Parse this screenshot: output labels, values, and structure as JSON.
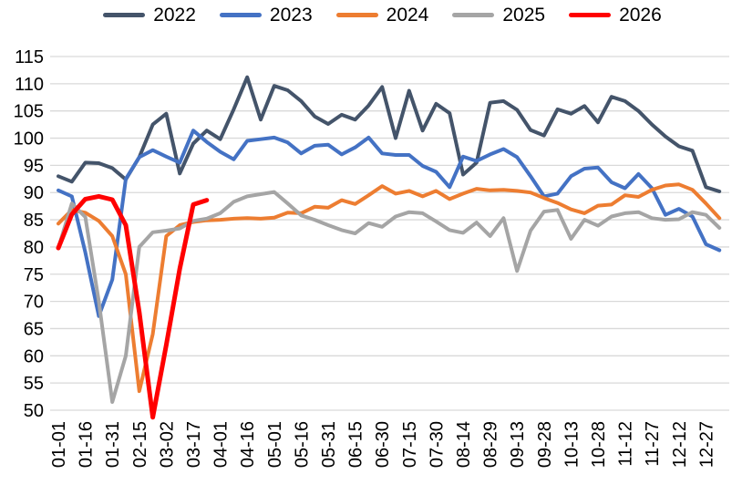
{
  "chart_data": {
    "type": "line",
    "title": "",
    "xlabel": "",
    "ylabel": "",
    "grid": true,
    "legend_position": "top",
    "gridline_color": "#d9d9d9",
    "text_color": "#000000",
    "y_axis": {
      "min": 50,
      "max": 115,
      "step": 5,
      "ticks": [
        115,
        110,
        105,
        100,
        95,
        90,
        85,
        80,
        75,
        70,
        65,
        60,
        55,
        50
      ]
    },
    "x_axis": {
      "tick_labels": [
        "01-01",
        "01-16",
        "01-31",
        "02-15",
        "03-02",
        "03-17",
        "04-01",
        "04-16",
        "05-01",
        "05-16",
        "05-31",
        "06-15",
        "06-30",
        "07-15",
        "07-30",
        "08-14",
        "08-29",
        "09-13",
        "09-28",
        "10-13",
        "10-28",
        "11-12",
        "11-27",
        "12-12",
        "12-27"
      ],
      "points_per_tick_interval": 2
    },
    "series": [
      {
        "name": "2022",
        "color": "#44546A",
        "line_width": 4,
        "values": [
          93,
          92,
          95.5,
          95.4,
          94.5,
          92.4,
          96.5,
          102.5,
          104.5,
          93.5,
          99,
          101.4,
          99.8,
          105.3,
          111.2,
          103.4,
          109.6,
          108.8,
          106.8,
          104,
          102.6,
          104.3,
          103.4,
          106,
          109.4,
          100,
          108.7,
          101.4,
          106.3,
          104.6,
          93.3,
          95.5,
          106.5,
          106.8,
          105.2,
          101.5,
          100.5,
          105.3,
          104.5,
          105.9,
          102.9,
          107.6,
          106.8,
          105,
          102.5,
          100.3,
          98.5,
          97.7,
          91,
          90.2
        ]
      },
      {
        "name": "2023",
        "color": "#4472C4",
        "line_width": 4,
        "values": [
          90.4,
          89.3,
          79,
          67.3,
          74,
          92.5,
          96.5,
          97.8,
          96.6,
          95.5,
          101.4,
          99.3,
          97.5,
          96.1,
          99.5,
          99.8,
          100.1,
          99.2,
          97.2,
          98.6,
          98.8,
          97,
          98.3,
          100.1,
          97.2,
          96.9,
          96.9,
          94.9,
          93.8,
          91,
          96.6,
          95.8,
          97,
          98,
          96.5,
          93,
          89.3,
          89.8,
          93,
          94.4,
          94.6,
          91.9,
          90.8,
          93.4,
          90.8,
          85.9,
          87,
          85.6,
          80.5,
          79.4
        ]
      },
      {
        "name": "2024",
        "color": "#ED7D31",
        "line_width": 4,
        "values": [
          84.3,
          86.8,
          86.3,
          84.8,
          82,
          75,
          53.5,
          64,
          82,
          84,
          84.6,
          84.9,
          85,
          85.2,
          85.3,
          85.2,
          85.4,
          86.3,
          86.2,
          87.4,
          87.2,
          88.6,
          87.9,
          89.5,
          91.2,
          89.8,
          90.3,
          89.3,
          90.3,
          88.8,
          89.8,
          90.7,
          90.4,
          90.5,
          90.3,
          90,
          89,
          88.1,
          86.9,
          86.2,
          87.6,
          87.8,
          89.5,
          89.2,
          90.5,
          91.3,
          91.5,
          90.5,
          88,
          85.3
        ]
      },
      {
        "name": "2025",
        "color": "#A5A5A5",
        "line_width": 4,
        "values": [
          79.8,
          88,
          85.5,
          70,
          51.5,
          60,
          80,
          82.7,
          83,
          83.4,
          84.8,
          85.2,
          86.2,
          88.3,
          89.3,
          89.7,
          90.1,
          88,
          85.8,
          85,
          84,
          83.1,
          82.5,
          84.4,
          83.7,
          85.6,
          86.4,
          86.2,
          84.7,
          83.1,
          82.6,
          84.5,
          82,
          85.3,
          75.6,
          83,
          86.5,
          86.8,
          81.5,
          85,
          83.9,
          85.6,
          86.2,
          86.4,
          85.3,
          85,
          85.1,
          86.4,
          85.9,
          83.5
        ]
      },
      {
        "name": "2026",
        "color": "#FF0000",
        "line_width": 5,
        "values": [
          79.8,
          86,
          88.8,
          89.3,
          88.7,
          84,
          68,
          48.7,
          62,
          76,
          87.8,
          88.6
        ]
      }
    ]
  }
}
